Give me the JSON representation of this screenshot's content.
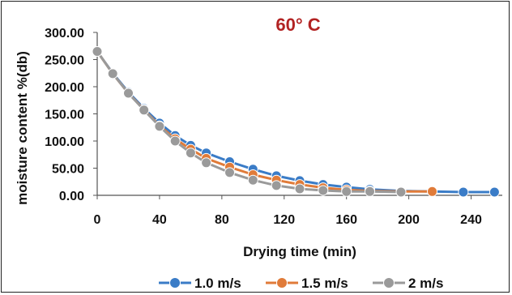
{
  "chart_data": {
    "type": "line",
    "title": "60° C",
    "title_color": "#b22222",
    "xlabel": "Drying time (min)",
    "ylabel": "moisture content %(db)",
    "xlim": [
      0,
      260
    ],
    "ylim": [
      0,
      300
    ],
    "x_ticks": [
      0,
      40,
      80,
      120,
      160,
      200,
      240
    ],
    "x_tick_labels": [
      "0",
      "40",
      "80",
      "120",
      "160",
      "200",
      "240"
    ],
    "y_ticks": [
      0,
      50,
      100,
      150,
      200,
      250,
      300
    ],
    "y_tick_labels": [
      "0.00",
      "50.00",
      "100.00",
      "150.00",
      "200.00",
      "250.00",
      "300.00"
    ],
    "grid": false,
    "legend_position": "bottom",
    "series": [
      {
        "name": "1.0 m/s",
        "color": "#3a7cc7",
        "x": [
          0,
          10,
          20,
          30,
          40,
          50,
          60,
          70,
          85,
          100,
          115,
          130,
          145,
          160,
          175,
          195,
          215,
          235,
          255
        ],
        "y": [
          265,
          225,
          190,
          160,
          133,
          110,
          92,
          78,
          62,
          48,
          36,
          27,
          20,
          15,
          11,
          8,
          7,
          6,
          6
        ]
      },
      {
        "name": "1.5 m/s",
        "color": "#e07b39",
        "x": [
          0,
          10,
          20,
          30,
          40,
          50,
          60,
          70,
          85,
          100,
          115,
          130,
          145,
          160,
          175,
          195,
          215
        ],
        "y": [
          265,
          224,
          188,
          158,
          128,
          104,
          85,
          68,
          52,
          38,
          28,
          20,
          14,
          10,
          8,
          7,
          7
        ]
      },
      {
        "name": "2 m/s",
        "color": "#9a9a9a",
        "x": [
          0,
          10,
          20,
          30,
          40,
          50,
          60,
          70,
          85,
          100,
          115,
          130,
          145,
          160,
          175,
          195
        ],
        "y": [
          265,
          224,
          188,
          157,
          127,
          100,
          78,
          60,
          42,
          28,
          18,
          12,
          9,
          7,
          7,
          6
        ]
      }
    ]
  }
}
